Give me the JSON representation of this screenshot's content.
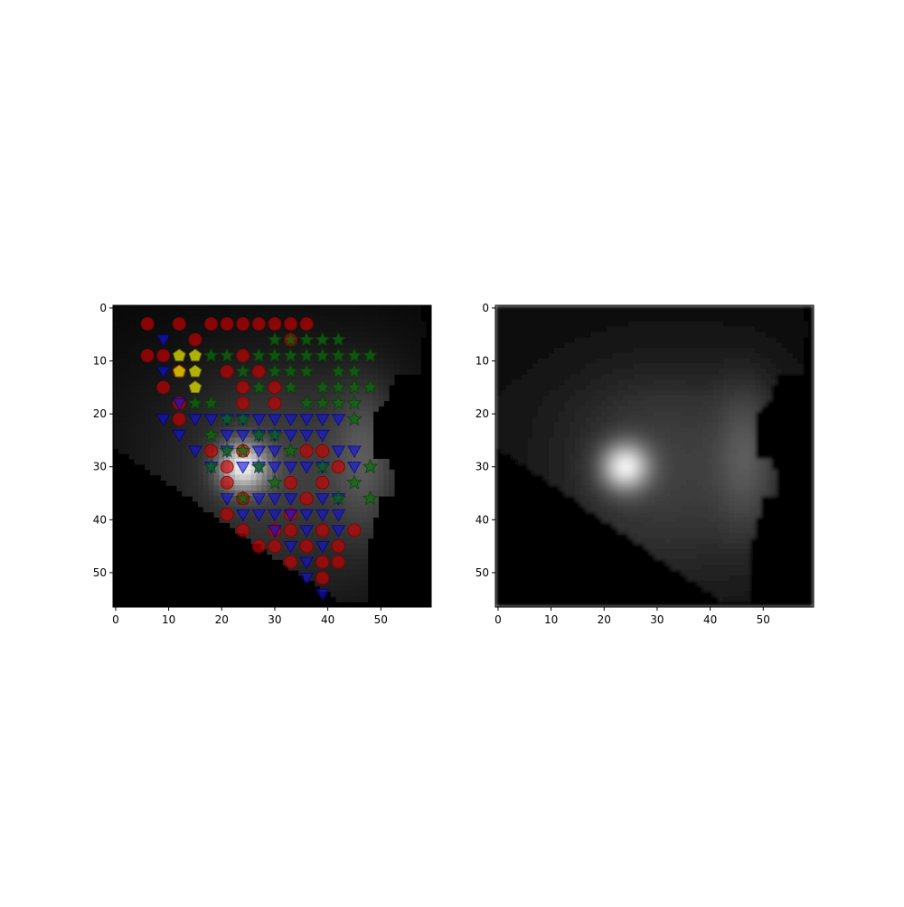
{
  "chart_data": [
    {
      "type": "heatmap",
      "title": "",
      "xlabel": "",
      "ylabel": "",
      "xlim": [
        -0.5,
        59.5
      ],
      "ylim": [
        56.5,
        -0.5
      ],
      "x_ticks": [
        0,
        10,
        20,
        30,
        40,
        50
      ],
      "y_ticks": [
        0,
        10,
        20,
        30,
        40,
        50
      ],
      "image": {
        "colormap": "gray",
        "description_peak": [
          24,
          30
        ],
        "secondary_ridge": [
          [
            44,
            23
          ],
          [
            47,
            28
          ],
          [
            47,
            33
          ]
        ]
      },
      "overlays": {
        "circles": {
          "color": "#cc0000",
          "points": [
            [
              6,
              3
            ],
            [
              12,
              3
            ],
            [
              18,
              3
            ],
            [
              21,
              3
            ],
            [
              24,
              3
            ],
            [
              27,
              3
            ],
            [
              30,
              3
            ],
            [
              33,
              3
            ],
            [
              36,
              3
            ],
            [
              15,
              6
            ],
            [
              33,
              6
            ],
            [
              6,
              9
            ],
            [
              9,
              9
            ],
            [
              24,
              9
            ],
            [
              12,
              12
            ],
            [
              21,
              12
            ],
            [
              27,
              12
            ],
            [
              9,
              15
            ],
            [
              24,
              15
            ],
            [
              30,
              15
            ],
            [
              12,
              18
            ],
            [
              24,
              18
            ],
            [
              30,
              18
            ],
            [
              12,
              21
            ],
            [
              18,
              27
            ],
            [
              24,
              27
            ],
            [
              36,
              27
            ],
            [
              39,
              27
            ],
            [
              21,
              30
            ],
            [
              42,
              30
            ],
            [
              21,
              33
            ],
            [
              33,
              33
            ],
            [
              39,
              33
            ],
            [
              24,
              36
            ],
            [
              36,
              36
            ],
            [
              21,
              39
            ],
            [
              33,
              39
            ],
            [
              24,
              42
            ],
            [
              30,
              42
            ],
            [
              33,
              42
            ],
            [
              39,
              42
            ],
            [
              45,
              42
            ],
            [
              27,
              45
            ],
            [
              30,
              45
            ],
            [
              36,
              45
            ],
            [
              42,
              45
            ],
            [
              33,
              48
            ],
            [
              39,
              48
            ],
            [
              42,
              48
            ],
            [
              39,
              51
            ]
          ]
        },
        "triangles": {
          "color": "#1010e0",
          "points": [
            [
              9,
              6
            ],
            [
              9,
              12
            ],
            [
              12,
              18
            ],
            [
              9,
              21
            ],
            [
              15,
              21
            ],
            [
              18,
              21
            ],
            [
              21,
              21
            ],
            [
              24,
              21
            ],
            [
              27,
              21
            ],
            [
              30,
              21
            ],
            [
              33,
              21
            ],
            [
              36,
              21
            ],
            [
              39,
              21
            ],
            [
              42,
              21
            ],
            [
              12,
              24
            ],
            [
              21,
              24
            ],
            [
              24,
              24
            ],
            [
              27,
              24
            ],
            [
              30,
              24
            ],
            [
              33,
              24
            ],
            [
              36,
              24
            ],
            [
              39,
              24
            ],
            [
              15,
              27
            ],
            [
              21,
              27
            ],
            [
              27,
              27
            ],
            [
              30,
              27
            ],
            [
              42,
              27
            ],
            [
              45,
              27
            ],
            [
              18,
              30
            ],
            [
              24,
              30
            ],
            [
              27,
              30
            ],
            [
              30,
              30
            ],
            [
              33,
              30
            ],
            [
              36,
              30
            ],
            [
              39,
              30
            ],
            [
              45,
              30
            ],
            [
              21,
              36
            ],
            [
              27,
              36
            ],
            [
              30,
              36
            ],
            [
              33,
              36
            ],
            [
              39,
              36
            ],
            [
              42,
              36
            ],
            [
              24,
              39
            ],
            [
              27,
              39
            ],
            [
              30,
              39
            ],
            [
              33,
              39
            ],
            [
              36,
              39
            ],
            [
              39,
              39
            ],
            [
              42,
              39
            ],
            [
              30,
              42
            ],
            [
              36,
              42
            ],
            [
              42,
              42
            ],
            [
              33,
              45
            ],
            [
              39,
              45
            ],
            [
              36,
              48
            ],
            [
              36,
              51
            ],
            [
              39,
              54
            ]
          ]
        },
        "stars": {
          "color": "#0a6e0a",
          "points": [
            [
              30,
              6
            ],
            [
              33,
              6
            ],
            [
              36,
              6
            ],
            [
              39,
              6
            ],
            [
              42,
              6
            ],
            [
              18,
              9
            ],
            [
              21,
              9
            ],
            [
              27,
              9
            ],
            [
              30,
              9
            ],
            [
              33,
              9
            ],
            [
              36,
              9
            ],
            [
              39,
              9
            ],
            [
              42,
              9
            ],
            [
              45,
              9
            ],
            [
              48,
              9
            ],
            [
              24,
              12
            ],
            [
              30,
              12
            ],
            [
              33,
              12
            ],
            [
              36,
              12
            ],
            [
              42,
              12
            ],
            [
              45,
              12
            ],
            [
              27,
              15
            ],
            [
              33,
              15
            ],
            [
              39,
              15
            ],
            [
              42,
              15
            ],
            [
              45,
              15
            ],
            [
              48,
              15
            ],
            [
              15,
              18
            ],
            [
              18,
              18
            ],
            [
              36,
              18
            ],
            [
              39,
              18
            ],
            [
              42,
              18
            ],
            [
              45,
              18
            ],
            [
              21,
              21
            ],
            [
              24,
              21
            ],
            [
              45,
              21
            ],
            [
              18,
              24
            ],
            [
              27,
              24
            ],
            [
              30,
              24
            ],
            [
              21,
              27
            ],
            [
              24,
              27
            ],
            [
              33,
              27
            ],
            [
              18,
              30
            ],
            [
              27,
              30
            ],
            [
              39,
              30
            ],
            [
              48,
              30
            ],
            [
              30,
              33
            ],
            [
              45,
              33
            ],
            [
              24,
              36
            ],
            [
              42,
              36
            ],
            [
              48,
              36
            ]
          ]
        },
        "pentagons": {
          "color": "#e6e600",
          "points": [
            [
              12,
              9
            ],
            [
              15,
              9
            ],
            [
              12,
              12
            ],
            [
              15,
              12
            ],
            [
              15,
              15
            ]
          ]
        }
      }
    },
    {
      "type": "heatmap",
      "title": "",
      "xlabel": "",
      "ylabel": "",
      "xlim": [
        -0.5,
        59.5
      ],
      "ylim": [
        56.5,
        -0.5
      ],
      "x_ticks": [
        0,
        10,
        20,
        30,
        40,
        50
      ],
      "y_ticks": [
        0,
        10,
        20,
        30,
        40,
        50
      ],
      "image": {
        "colormap": "gray",
        "description_peak": [
          24,
          30
        ],
        "secondary_ridge": [
          [
            44,
            23
          ],
          [
            47,
            28
          ],
          [
            47,
            33
          ]
        ]
      }
    }
  ]
}
